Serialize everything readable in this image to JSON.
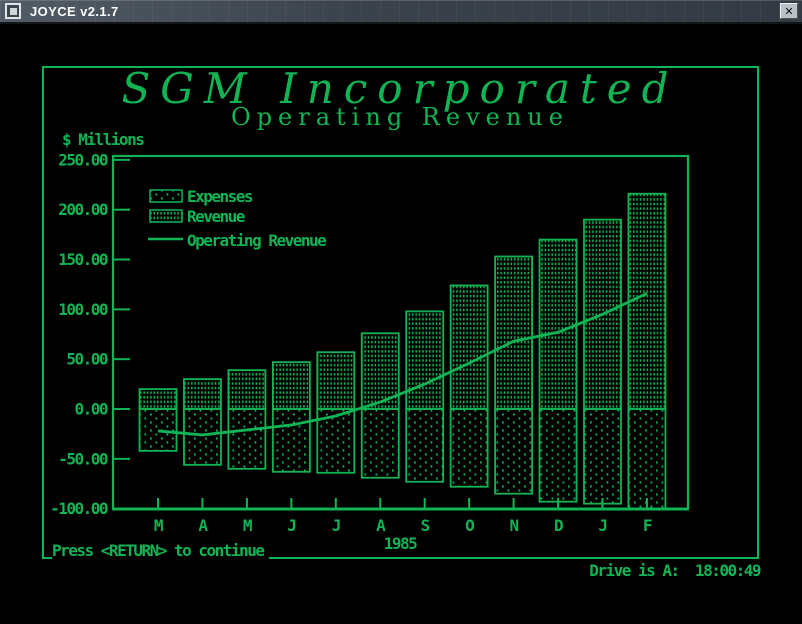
{
  "window": {
    "title": "JOYCE v2.1.7",
    "close_glyph": "✕"
  },
  "colors": {
    "green": "#11b454",
    "background": "#000000",
    "titlebar": "#3c444d",
    "titlebar_text": "#ffffff"
  },
  "status_bar": {
    "prompt": "Press <RETURN> to continue",
    "drive_status": "Drive is A:  18:00:49"
  },
  "chart_data": {
    "type": "bar",
    "title": "SGM Incorporated",
    "subtitle": "Operating Revenue",
    "ylabel": "$ Millions",
    "xlabel": "1985",
    "categories": [
      "M",
      "A",
      "M",
      "J",
      "J",
      "A",
      "S",
      "O",
      "N",
      "D",
      "J",
      "F"
    ],
    "ylim": [
      -100,
      250
    ],
    "yticks": [
      250,
      200,
      150,
      100,
      50,
      0,
      -50,
      -100
    ],
    "grid": false,
    "legend_position": "top-left-inside",
    "series": [
      {
        "name": "Expenses",
        "type": "bar",
        "pattern": "sparse-dots",
        "values": [
          -42,
          -56,
          -60,
          -63,
          -64,
          -69,
          -73,
          -78,
          -85,
          -93,
          -95,
          -100
        ]
      },
      {
        "name": "Revenue",
        "type": "bar",
        "pattern": "dense-dots",
        "values": [
          20,
          30,
          39,
          47,
          57,
          76,
          98,
          124,
          153,
          170,
          190,
          216
        ]
      },
      {
        "name": "Operating Revenue",
        "type": "line",
        "values": [
          -22,
          -26,
          -21,
          -16,
          -7,
          7,
          25,
          46,
          68,
          77,
          95,
          116
        ]
      }
    ]
  }
}
